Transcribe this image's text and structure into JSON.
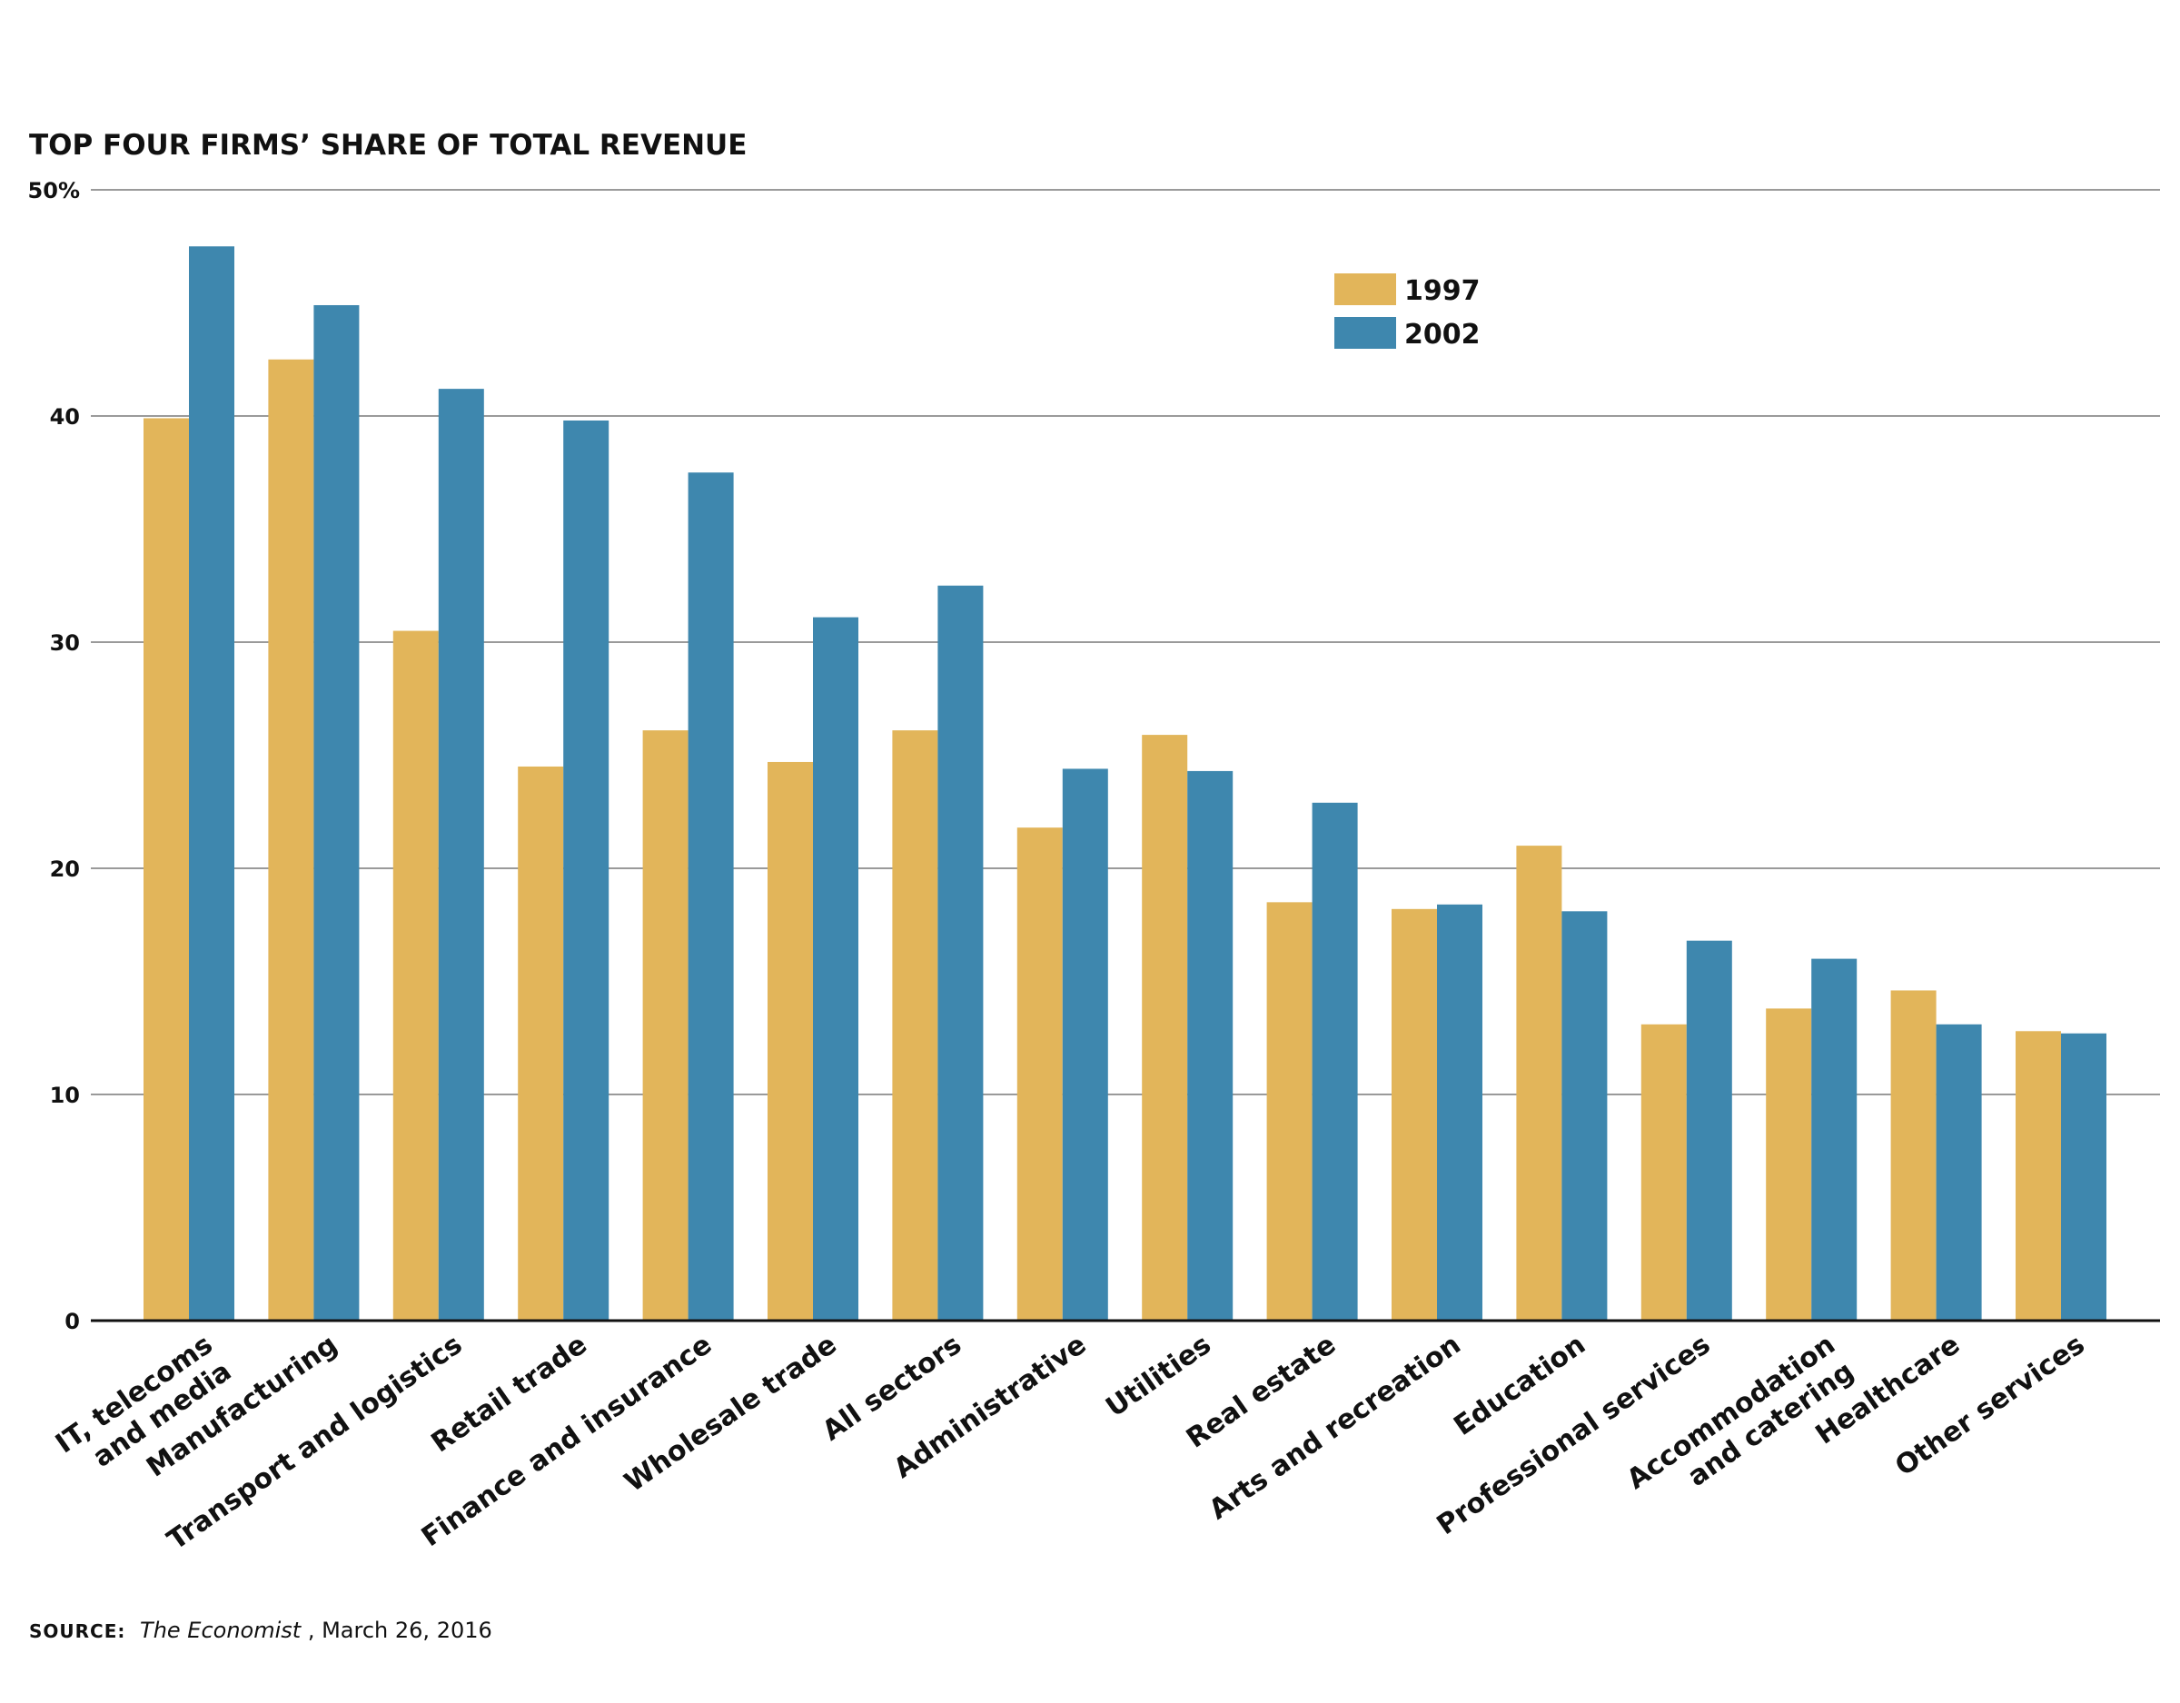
{
  "colors": {
    "series_1997": "#E2B55A",
    "series_2002": "#3E87AE",
    "gridline": "#9A9A9A",
    "axis": "#111111",
    "text": "#111111"
  },
  "chart_data": {
    "type": "bar",
    "title": "TOP FOUR FIRMS’ SHARE OF TOTAL REVENUE",
    "xlabel": "",
    "ylabel": "",
    "ylim": [
      0,
      50
    ],
    "yticks": [
      0,
      10,
      20,
      30,
      40,
      50
    ],
    "ytick_labels": [
      "0",
      "10",
      "20",
      "30",
      "40",
      "50%"
    ],
    "grid": true,
    "legend_position": "top-right",
    "categories": [
      [
        "IT, telecoms",
        "and media"
      ],
      [
        "Manufacturing"
      ],
      [
        "Transport and logistics"
      ],
      [
        "Retail trade"
      ],
      [
        "Finance and insurance"
      ],
      [
        "Wholesale trade"
      ],
      [
        "All sectors"
      ],
      [
        "Administrative"
      ],
      [
        "Utilities"
      ],
      [
        "Real estate"
      ],
      [
        "Arts and recreation"
      ],
      [
        "Education"
      ],
      [
        "Professional services"
      ],
      [
        "Accommodation",
        "and catering"
      ],
      [
        "Healthcare"
      ],
      [
        "Other services"
      ]
    ],
    "series": [
      {
        "name": "1997",
        "color_key": "series_1997",
        "values": [
          39.9,
          42.5,
          30.5,
          24.5,
          26.1,
          24.7,
          26.1,
          21.8,
          25.9,
          18.5,
          18.2,
          21.0,
          13.1,
          13.8,
          14.6,
          12.8
        ]
      },
      {
        "name": "2002",
        "color_key": "series_2002",
        "values": [
          47.5,
          44.9,
          41.2,
          39.8,
          37.5,
          31.1,
          32.5,
          24.4,
          24.3,
          22.9,
          18.4,
          18.1,
          16.8,
          16.0,
          13.1,
          12.7
        ]
      }
    ]
  },
  "source": {
    "label": "SOURCE:",
    "publication": "The Economist",
    "date": ", March 26, 2016"
  }
}
